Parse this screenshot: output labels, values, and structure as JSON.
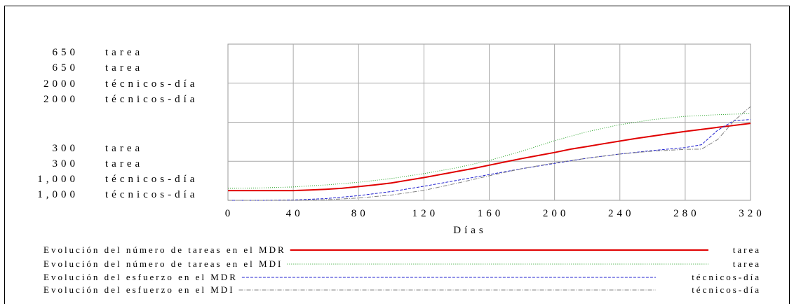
{
  "chart_data": {
    "type": "line",
    "xlabel": "Días",
    "xlim": [
      0,
      320
    ],
    "x_ticks": [
      "0",
      "40",
      "80",
      "120",
      "160",
      "200",
      "240",
      "280",
      "320"
    ],
    "left_axes": {
      "top": [
        {
          "value": "650",
          "unit": "tarea"
        },
        {
          "value": "650",
          "unit": "tarea"
        },
        {
          "value": "2000",
          "unit": "técnicos-día"
        },
        {
          "value": "2000",
          "unit": "técnicos-día"
        }
      ],
      "bottom": [
        {
          "value": "300",
          "unit": "tarea"
        },
        {
          "value": "300",
          "unit": "tarea"
        },
        {
          "value": "1,000",
          "unit": "técnicos-día"
        },
        {
          "value": "1,000",
          "unit": "técnicos-día"
        }
      ]
    },
    "series": [
      {
        "name": "Evolución del número de tareas en el MDR",
        "unit": "tarea",
        "color": "#e00000",
        "style": "solid",
        "ylim": [
          300,
          650
        ],
        "x": [
          0,
          20,
          40,
          50,
          60,
          70,
          80,
          90,
          100,
          110,
          120,
          130,
          140,
          150,
          160,
          170,
          180,
          190,
          200,
          210,
          220,
          230,
          240,
          250,
          260,
          270,
          280,
          290,
          300,
          310,
          320
        ],
        "y": [
          329,
          329,
          329,
          331,
          333,
          336,
          341,
          346,
          352,
          360,
          368,
          377,
          386,
          395,
          405,
          415,
          425,
          434,
          443,
          453,
          461,
          469,
          477,
          485,
          492,
          499,
          506,
          512,
          518,
          524,
          530
        ]
      },
      {
        "name": "Evolución del número de tareas en el MDI",
        "unit": "tarea",
        "color": "#20a020",
        "style": "dotted",
        "ylim": [
          300,
          650
        ],
        "x": [
          0,
          20,
          40,
          60,
          80,
          100,
          120,
          140,
          160,
          180,
          200,
          220,
          240,
          260,
          280,
          300,
          320
        ],
        "y": [
          336,
          337,
          340,
          346,
          354,
          365,
          380,
          397,
          419,
          447,
          478,
          505,
          526,
          541,
          551,
          556,
          559
        ]
      },
      {
        "name": "Evolución del esfuerzo en el MDR",
        "unit": "técnicos-día",
        "color": "#2020d0",
        "style": "dashed",
        "ylim": [
          1000,
          2000
        ],
        "x": [
          0,
          20,
          40,
          60,
          80,
          100,
          120,
          140,
          160,
          180,
          200,
          220,
          240,
          260,
          280,
          290,
          300,
          310,
          320
        ],
        "y": [
          1000,
          1000,
          1003,
          1015,
          1040,
          1075,
          1120,
          1170,
          1220,
          1270,
          1315,
          1360,
          1395,
          1425,
          1450,
          1475,
          1600,
          1680,
          1690
        ]
      },
      {
        "name": "Evolución del esfuerzo en el MDI",
        "unit": "técnicos-día",
        "color": "#808080",
        "style": "dashdot",
        "ylim": [
          1000,
          2000
        ],
        "x": [
          0,
          20,
          40,
          60,
          80,
          100,
          120,
          140,
          160,
          180,
          200,
          220,
          240,
          260,
          280,
          290,
          300,
          310,
          320
        ],
        "y": [
          1000,
          1000,
          1000,
          1005,
          1020,
          1045,
          1085,
          1145,
          1210,
          1270,
          1320,
          1360,
          1395,
          1420,
          1435,
          1437,
          1520,
          1680,
          1800
        ]
      }
    ],
    "grid": true,
    "legend_position": "bottom"
  }
}
